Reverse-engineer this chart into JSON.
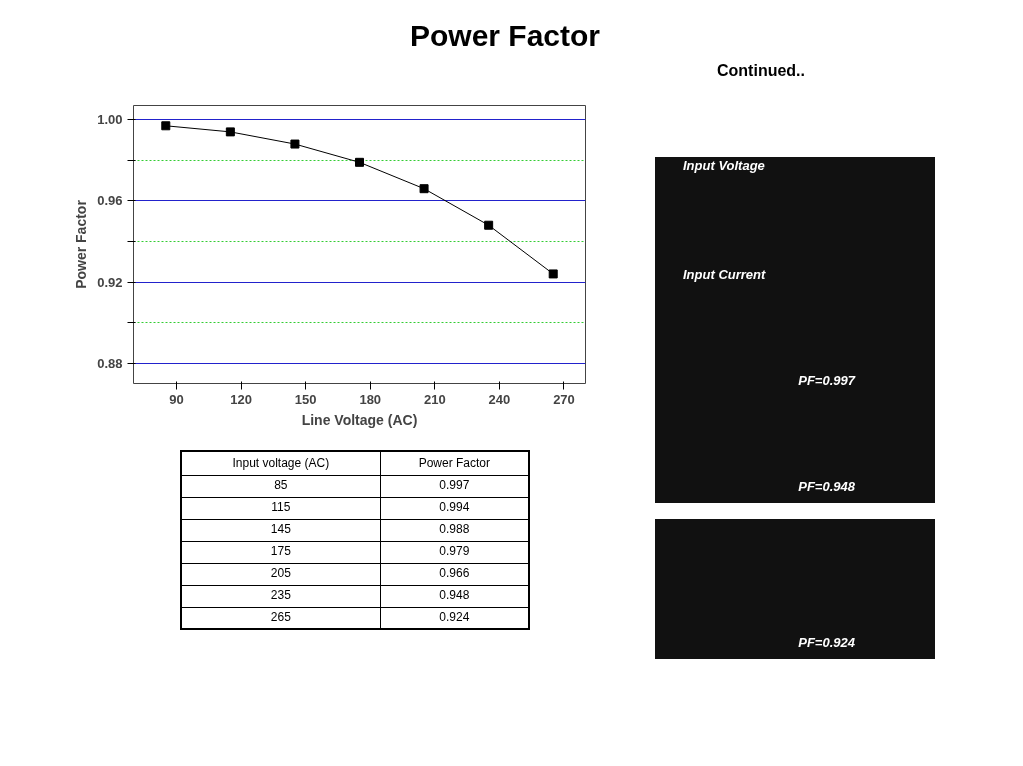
{
  "chart_data": {
    "type": "line",
    "title": "Power Factor",
    "xlabel": "Line Voltage (AC)",
    "ylabel": "Power Factor",
    "x": [
      85,
      115,
      145,
      175,
      205,
      235,
      265
    ],
    "series": [
      {
        "color": "#000000",
        "values": [
          0.997,
          0.994,
          0.988,
          0.979,
          0.966,
          0.948,
          0.924
        ]
      }
    ],
    "xlim": [
      70,
      280
    ],
    "xticks": [
      90,
      120,
      150,
      180,
      210,
      240,
      270
    ],
    "ylim": [
      0.87,
      1.007
    ],
    "yticks": [
      0.88,
      {
        "value": 0.9,
        "label": null
      },
      0.92,
      {
        "value": 0.94,
        "label": null
      },
      0.96,
      {
        "value": 0.98,
        "label": null
      },
      {
        "value": 1,
        "label": "1.00"
      }
    ],
    "grid": "y",
    "marker": "square",
    "line_style": "solid",
    "annotations": [
      "Continued..",
      "Input Voltage",
      "Input Current",
      "PF=0.997",
      "PF=0.948",
      "PF=0.924",
      "Input voltage (AC)",
      "Power Factor",
      "85",
      "0.997",
      "115",
      "0.994",
      "145",
      "0.988",
      "175",
      "0.979",
      "205",
      "0.966",
      "235",
      "0.948",
      "265",
      "0.924"
    ]
  }
}
